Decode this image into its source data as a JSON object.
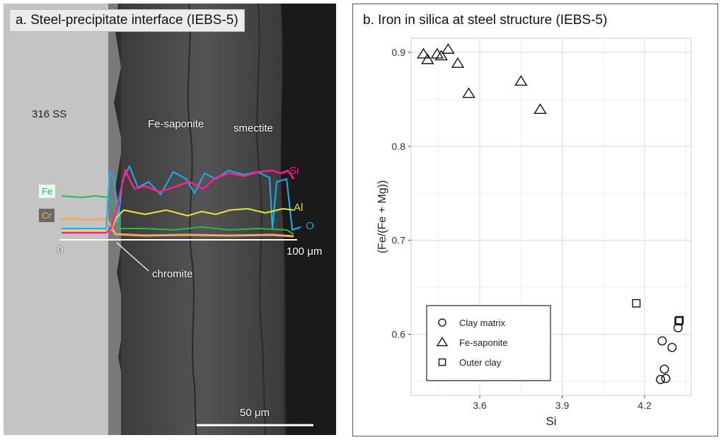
{
  "panel_a": {
    "title": "a. Steel-precipitate interface (IEBS-5)",
    "labels": {
      "steel": "316 SS",
      "fe_saponite": "Fe-saponite",
      "smectite": "smectite",
      "chromite": "chromite",
      "axis_start": "0",
      "axis_end": "100 μm",
      "scale_bar": "50 μm"
    },
    "line_labels": {
      "si": "Si",
      "al": "Al",
      "o": "O",
      "fe": "Fe",
      "cr": "Cr"
    },
    "colors": {
      "si": "#ff1f8e",
      "al": "#e8e83a",
      "o": "#1ab0e8",
      "fe": "#2db84a",
      "cr": "#f5a95a"
    }
  },
  "panel_b": {
    "title": "b. Iron in silica at steel structure (IEBS-5)"
  },
  "chart_data": {
    "type": "scatter",
    "title": "b. Iron in silica at steel structure (IEBS-5)",
    "xlabel": "Si",
    "ylabel": "(Fe/(Fe + Mg))",
    "xlim": [
      3.35,
      4.37
    ],
    "ylim": [
      0.535,
      0.915
    ],
    "xticks": [
      3.6,
      3.9,
      4.2
    ],
    "xtick_labels": [
      "3.6",
      "3.9",
      "4.2"
    ],
    "yticks": [
      0.6,
      0.7,
      0.8,
      0.9
    ],
    "ytick_labels": [
      "0.6",
      "0.7",
      "0.8",
      "0.9"
    ],
    "grid": true,
    "legend_position": "bottom-left",
    "series": [
      {
        "name": "Clay matrix",
        "marker": "circle",
        "points": [
          [
            4.264,
            0.593
          ],
          [
            4.272,
            0.563
          ],
          [
            4.277,
            0.553
          ],
          [
            4.258,
            0.552
          ],
          [
            4.3,
            0.586
          ],
          [
            4.322,
            0.607
          ]
        ]
      },
      {
        "name": "Fe-saponite",
        "marker": "triangle",
        "points": [
          [
            3.395,
            0.898
          ],
          [
            3.41,
            0.892
          ],
          [
            3.445,
            0.898
          ],
          [
            3.46,
            0.896
          ],
          [
            3.485,
            0.903
          ],
          [
            3.52,
            0.888
          ],
          [
            3.56,
            0.856
          ],
          [
            3.75,
            0.869
          ],
          [
            3.82,
            0.839
          ]
        ]
      },
      {
        "name": "Outer clay",
        "marker": "square",
        "points": [
          [
            4.17,
            0.633
          ],
          [
            4.324,
            0.614
          ],
          [
            4.327,
            0.615
          ]
        ]
      }
    ]
  }
}
